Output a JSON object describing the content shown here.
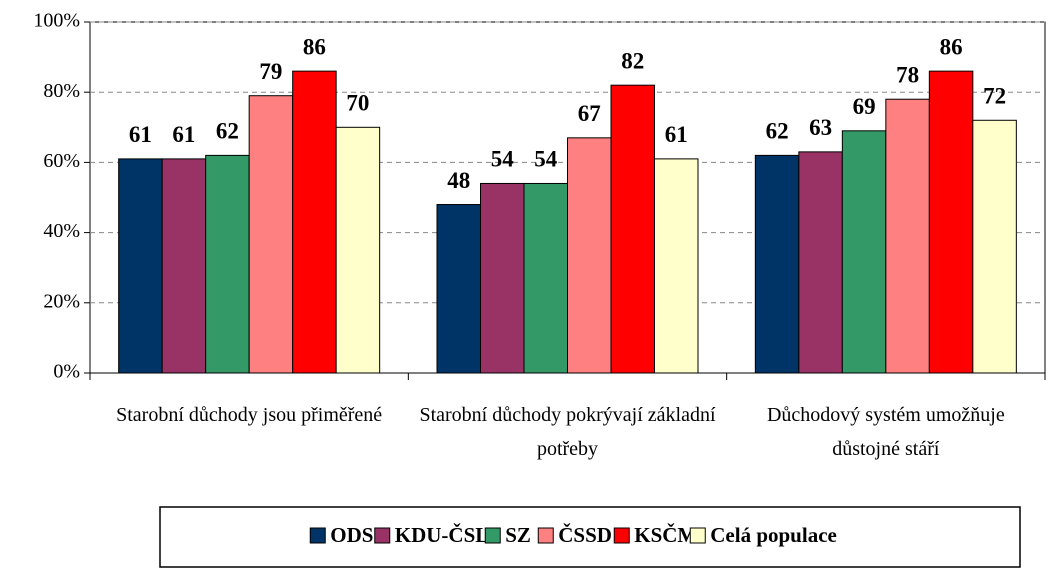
{
  "chart_data": {
    "type": "bar",
    "categories": [
      "Starobní důchody jsou přiměřené",
      "Starobní důchody pokrývají základní potřeby",
      "Důchodový systém umožňuje důstojné stáří"
    ],
    "series": [
      {
        "name": "ODS",
        "color": "#003366",
        "values": [
          61,
          48,
          62
        ]
      },
      {
        "name": "KDU-ČSL",
        "color": "#993366",
        "values": [
          61,
          54,
          63
        ]
      },
      {
        "name": "SZ",
        "color": "#339966",
        "values": [
          62,
          54,
          69
        ]
      },
      {
        "name": "ČSSD",
        "color": "#ff8080",
        "values": [
          79,
          67,
          78
        ]
      },
      {
        "name": "KSČM",
        "color": "#ff0000",
        "values": [
          86,
          82,
          86
        ]
      },
      {
        "name": "Celá populace",
        "color": "#ffffcc",
        "values": [
          70,
          61,
          72
        ]
      }
    ],
    "ylim": [
      0,
      100
    ],
    "yticks": [
      {
        "value": 0,
        "label": "0%"
      },
      {
        "value": 20,
        "label": "20%"
      },
      {
        "value": 40,
        "label": "40%"
      },
      {
        "value": 60,
        "label": "60%"
      },
      {
        "value": 80,
        "label": "80%"
      },
      {
        "value": 100,
        "label": "100%"
      }
    ],
    "grid": true
  }
}
